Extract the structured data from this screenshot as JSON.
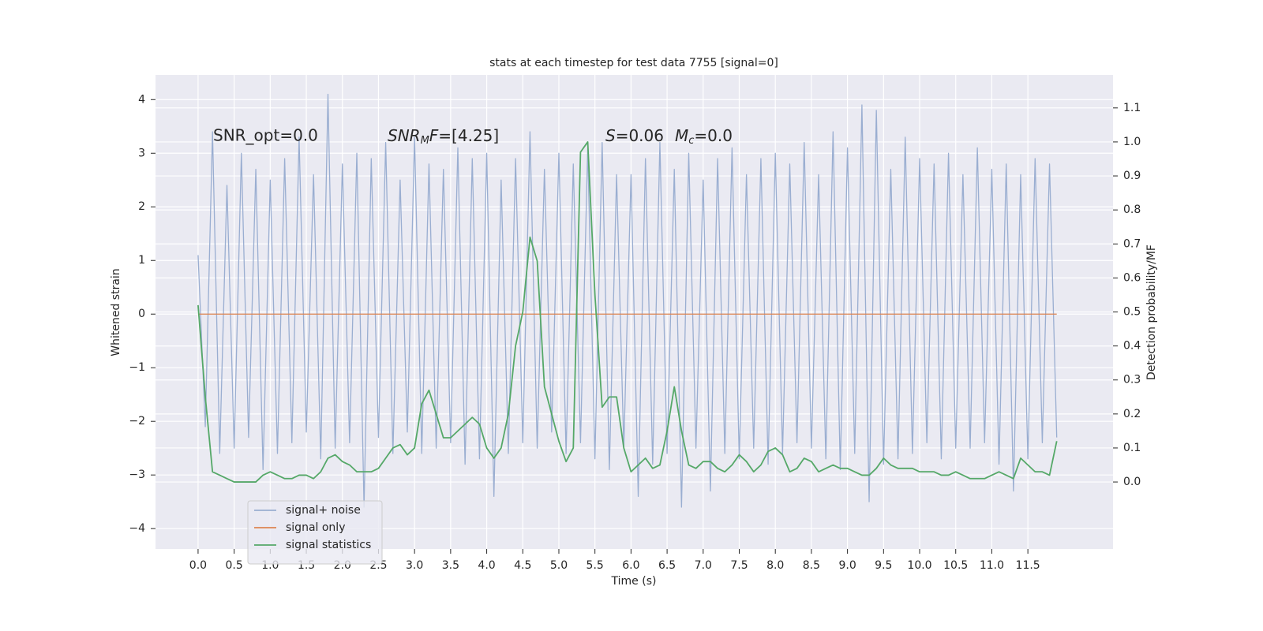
{
  "chart_data": {
    "type": "line",
    "title": "stats at each timestep for test data 7755 [signal=0]",
    "xlabel": "Time (s)",
    "ylabel": "Whitened strain",
    "y2label": "Detection probability/MF",
    "annotations": [
      [
        "SNR_opt=0.0"
      ],
      [
        "SNR",
        "M",
        "F",
        "=[4.25]"
      ],
      [
        "S",
        "=0.06",
        "M",
        "c",
        "=0.0"
      ]
    ],
    "x": [
      0,
      0.1,
      0.2,
      0.3,
      0.4,
      0.5,
      0.6,
      0.7,
      0.8,
      0.9,
      1,
      1.1,
      1.2,
      1.3,
      1.4,
      1.5,
      1.6,
      1.7,
      1.8,
      1.9,
      2,
      2.1,
      2.2,
      2.3,
      2.4,
      2.5,
      2.6,
      2.7,
      2.8,
      2.9,
      3,
      3.1,
      3.2,
      3.3,
      3.4,
      3.5,
      3.6,
      3.7,
      3.8,
      3.9,
      4,
      4.1,
      4.2,
      4.3,
      4.4,
      4.5,
      4.6,
      4.7,
      4.8,
      4.9,
      5,
      5.1,
      5.2,
      5.3,
      5.4,
      5.5,
      5.6,
      5.7,
      5.8,
      5.9,
      6,
      6.1,
      6.2,
      6.3,
      6.4,
      6.5,
      6.6,
      6.7,
      6.8,
      6.9,
      7,
      7.1,
      7.2,
      7.3,
      7.4,
      7.5,
      7.6,
      7.7,
      7.8,
      7.9,
      8,
      8.1,
      8.2,
      8.3,
      8.4,
      8.5,
      8.6,
      8.7,
      8.8,
      8.9,
      9,
      9.1,
      9.2,
      9.3,
      9.4,
      9.5,
      9.6,
      9.7,
      9.8,
      9.9,
      10,
      10.1,
      10.2,
      10.3,
      10.4,
      10.5,
      10.6,
      10.7,
      10.8,
      10.9,
      11,
      11.1,
      11.2,
      11.3,
      11.4,
      11.5,
      11.6,
      11.7,
      11.8,
      11.9
    ],
    "series": [
      {
        "name": "signal+ noise",
        "color": "#9aaed1",
        "values": [
          1.1,
          -2.1,
          3.4,
          -2.6,
          2.4,
          -2.5,
          3.0,
          -2.3,
          2.7,
          -2.9,
          2.5,
          -2.6,
          2.9,
          -2.4,
          3.3,
          -2.2,
          2.6,
          -2.7,
          4.1,
          -2.5,
          2.8,
          -2.4,
          3.0,
          -3.6,
          2.9,
          -2.3,
          3.2,
          -2.6,
          2.5,
          -2.2,
          3.3,
          -2.6,
          2.8,
          -2.5,
          2.7,
          -2.4,
          3.1,
          -2.8,
          2.9,
          -2.7,
          3.0,
          -3.4,
          2.5,
          -2.6,
          2.9,
          -2.4,
          3.4,
          -2.5,
          2.7,
          -2.2,
          3.0,
          -2.6,
          2.8,
          -2.4,
          3.1,
          -2.7,
          3.2,
          -2.9,
          2.6,
          -2.5,
          2.6,
          -3.4,
          2.9,
          -2.8,
          3.2,
          -2.6,
          2.7,
          -3.6,
          3.0,
          -2.5,
          2.5,
          -3.3,
          2.9,
          -2.6,
          3.1,
          -2.7,
          2.6,
          -2.5,
          2.9,
          -2.8,
          3.0,
          -2.6,
          2.8,
          -2.4,
          3.2,
          -2.5,
          2.6,
          -2.7,
          3.4,
          -2.9,
          3.1,
          -2.6,
          3.9,
          -3.5,
          3.8,
          -2.8,
          2.7,
          -2.7,
          3.3,
          -2.6,
          2.9,
          -2.4,
          2.8,
          -2.7,
          3.0,
          -2.5,
          2.6,
          -2.5,
          3.1,
          -2.4,
          2.7,
          -2.8,
          2.8,
          -3.3,
          2.6,
          -2.7,
          2.9,
          -2.4,
          2.8,
          -2.3
        ]
      },
      {
        "name": "signal only",
        "color": "#dd8452",
        "values": [
          0,
          0,
          0,
          0,
          0,
          0,
          0,
          0,
          0,
          0,
          0,
          0,
          0,
          0,
          0,
          0,
          0,
          0,
          0,
          0,
          0,
          0,
          0,
          0,
          0,
          0,
          0,
          0,
          0,
          0,
          0,
          0,
          0,
          0,
          0,
          0,
          0,
          0,
          0,
          0,
          0,
          0,
          0,
          0,
          0,
          0,
          0,
          0,
          0,
          0,
          0,
          0,
          0,
          0,
          0,
          0,
          0,
          0,
          0,
          0,
          0,
          0,
          0,
          0,
          0,
          0,
          0,
          0,
          0,
          0,
          0,
          0,
          0,
          0,
          0,
          0,
          0,
          0,
          0,
          0,
          0,
          0,
          0,
          0,
          0,
          0,
          0,
          0,
          0,
          0,
          0,
          0,
          0,
          0,
          0,
          0,
          0,
          0,
          0,
          0,
          0,
          0,
          0,
          0,
          0,
          0,
          0,
          0,
          0,
          0,
          0,
          0,
          0,
          0,
          0,
          0,
          0,
          0,
          0,
          0
        ]
      },
      {
        "name": "signal statistics",
        "color": "#55a868",
        "axis": "y2",
        "values": [
          0.52,
          0.25,
          0.03,
          0.02,
          0.01,
          0.0,
          0.0,
          0.0,
          0.0,
          0.02,
          0.03,
          0.02,
          0.01,
          0.01,
          0.02,
          0.02,
          0.01,
          0.03,
          0.07,
          0.08,
          0.06,
          0.05,
          0.03,
          0.03,
          0.03,
          0.04,
          0.07,
          0.1,
          0.11,
          0.08,
          0.1,
          0.23,
          0.27,
          0.2,
          0.13,
          0.13,
          0.15,
          0.17,
          0.19,
          0.17,
          0.1,
          0.07,
          0.1,
          0.2,
          0.4,
          0.5,
          0.72,
          0.65,
          0.28,
          0.2,
          0.12,
          0.06,
          0.1,
          0.97,
          1.0,
          0.55,
          0.22,
          0.25,
          0.25,
          0.1,
          0.03,
          0.05,
          0.07,
          0.04,
          0.05,
          0.15,
          0.28,
          0.15,
          0.05,
          0.04,
          0.06,
          0.06,
          0.04,
          0.03,
          0.05,
          0.08,
          0.06,
          0.03,
          0.05,
          0.09,
          0.1,
          0.08,
          0.03,
          0.04,
          0.07,
          0.06,
          0.03,
          0.04,
          0.05,
          0.04,
          0.04,
          0.03,
          0.02,
          0.02,
          0.04,
          0.07,
          0.05,
          0.04,
          0.04,
          0.04,
          0.03,
          0.03,
          0.03,
          0.02,
          0.02,
          0.03,
          0.02,
          0.01,
          0.01,
          0.01,
          0.02,
          0.03,
          0.02,
          0.01,
          0.07,
          0.05,
          0.03,
          0.03,
          0.02,
          0.12
        ]
      }
    ],
    "xlim": [
      -0.59,
      12.68
    ],
    "xticks": [
      {
        "value": 0,
        "label": "0.0"
      },
      0.5,
      {
        "value": 1,
        "label": "1.0"
      },
      1.5,
      {
        "value": 2,
        "label": "2.0"
      },
      2.5,
      {
        "value": 3,
        "label": "3.0"
      },
      3.5,
      {
        "value": 4,
        "label": "4.0"
      },
      4.5,
      {
        "value": 5,
        "label": "5.0"
      },
      5.5,
      {
        "value": 6,
        "label": "6.0"
      },
      6.5,
      {
        "value": 7,
        "label": "7.0"
      },
      7.5,
      {
        "value": 8,
        "label": "8.0"
      },
      8.5,
      {
        "value": 9,
        "label": "9.0"
      },
      9.5,
      {
        "value": 10,
        "label": "10.0"
      },
      10.5,
      {
        "value": 11,
        "label": "11.0"
      },
      11.5
    ],
    "ylim": [
      -4.38,
      4.46
    ],
    "yticks": [
      {
        "value": -4,
        "label": "−4"
      },
      {
        "value": -3,
        "label": "−3"
      },
      {
        "value": -2,
        "label": "−2"
      },
      {
        "value": -1,
        "label": "−1"
      },
      0,
      1,
      2,
      3,
      4
    ],
    "y2lim": [
      -0.197,
      1.197
    ],
    "y2ticks": [
      {
        "value": 0,
        "label": "0.0"
      },
      0.1,
      0.2,
      0.3,
      0.4,
      0.5,
      0.6,
      0.7,
      0.8,
      0.9,
      {
        "value": 1,
        "label": "1.0"
      },
      1.1
    ],
    "grid": true,
    "legend": "lower left",
    "background": "#eaeaf2"
  }
}
